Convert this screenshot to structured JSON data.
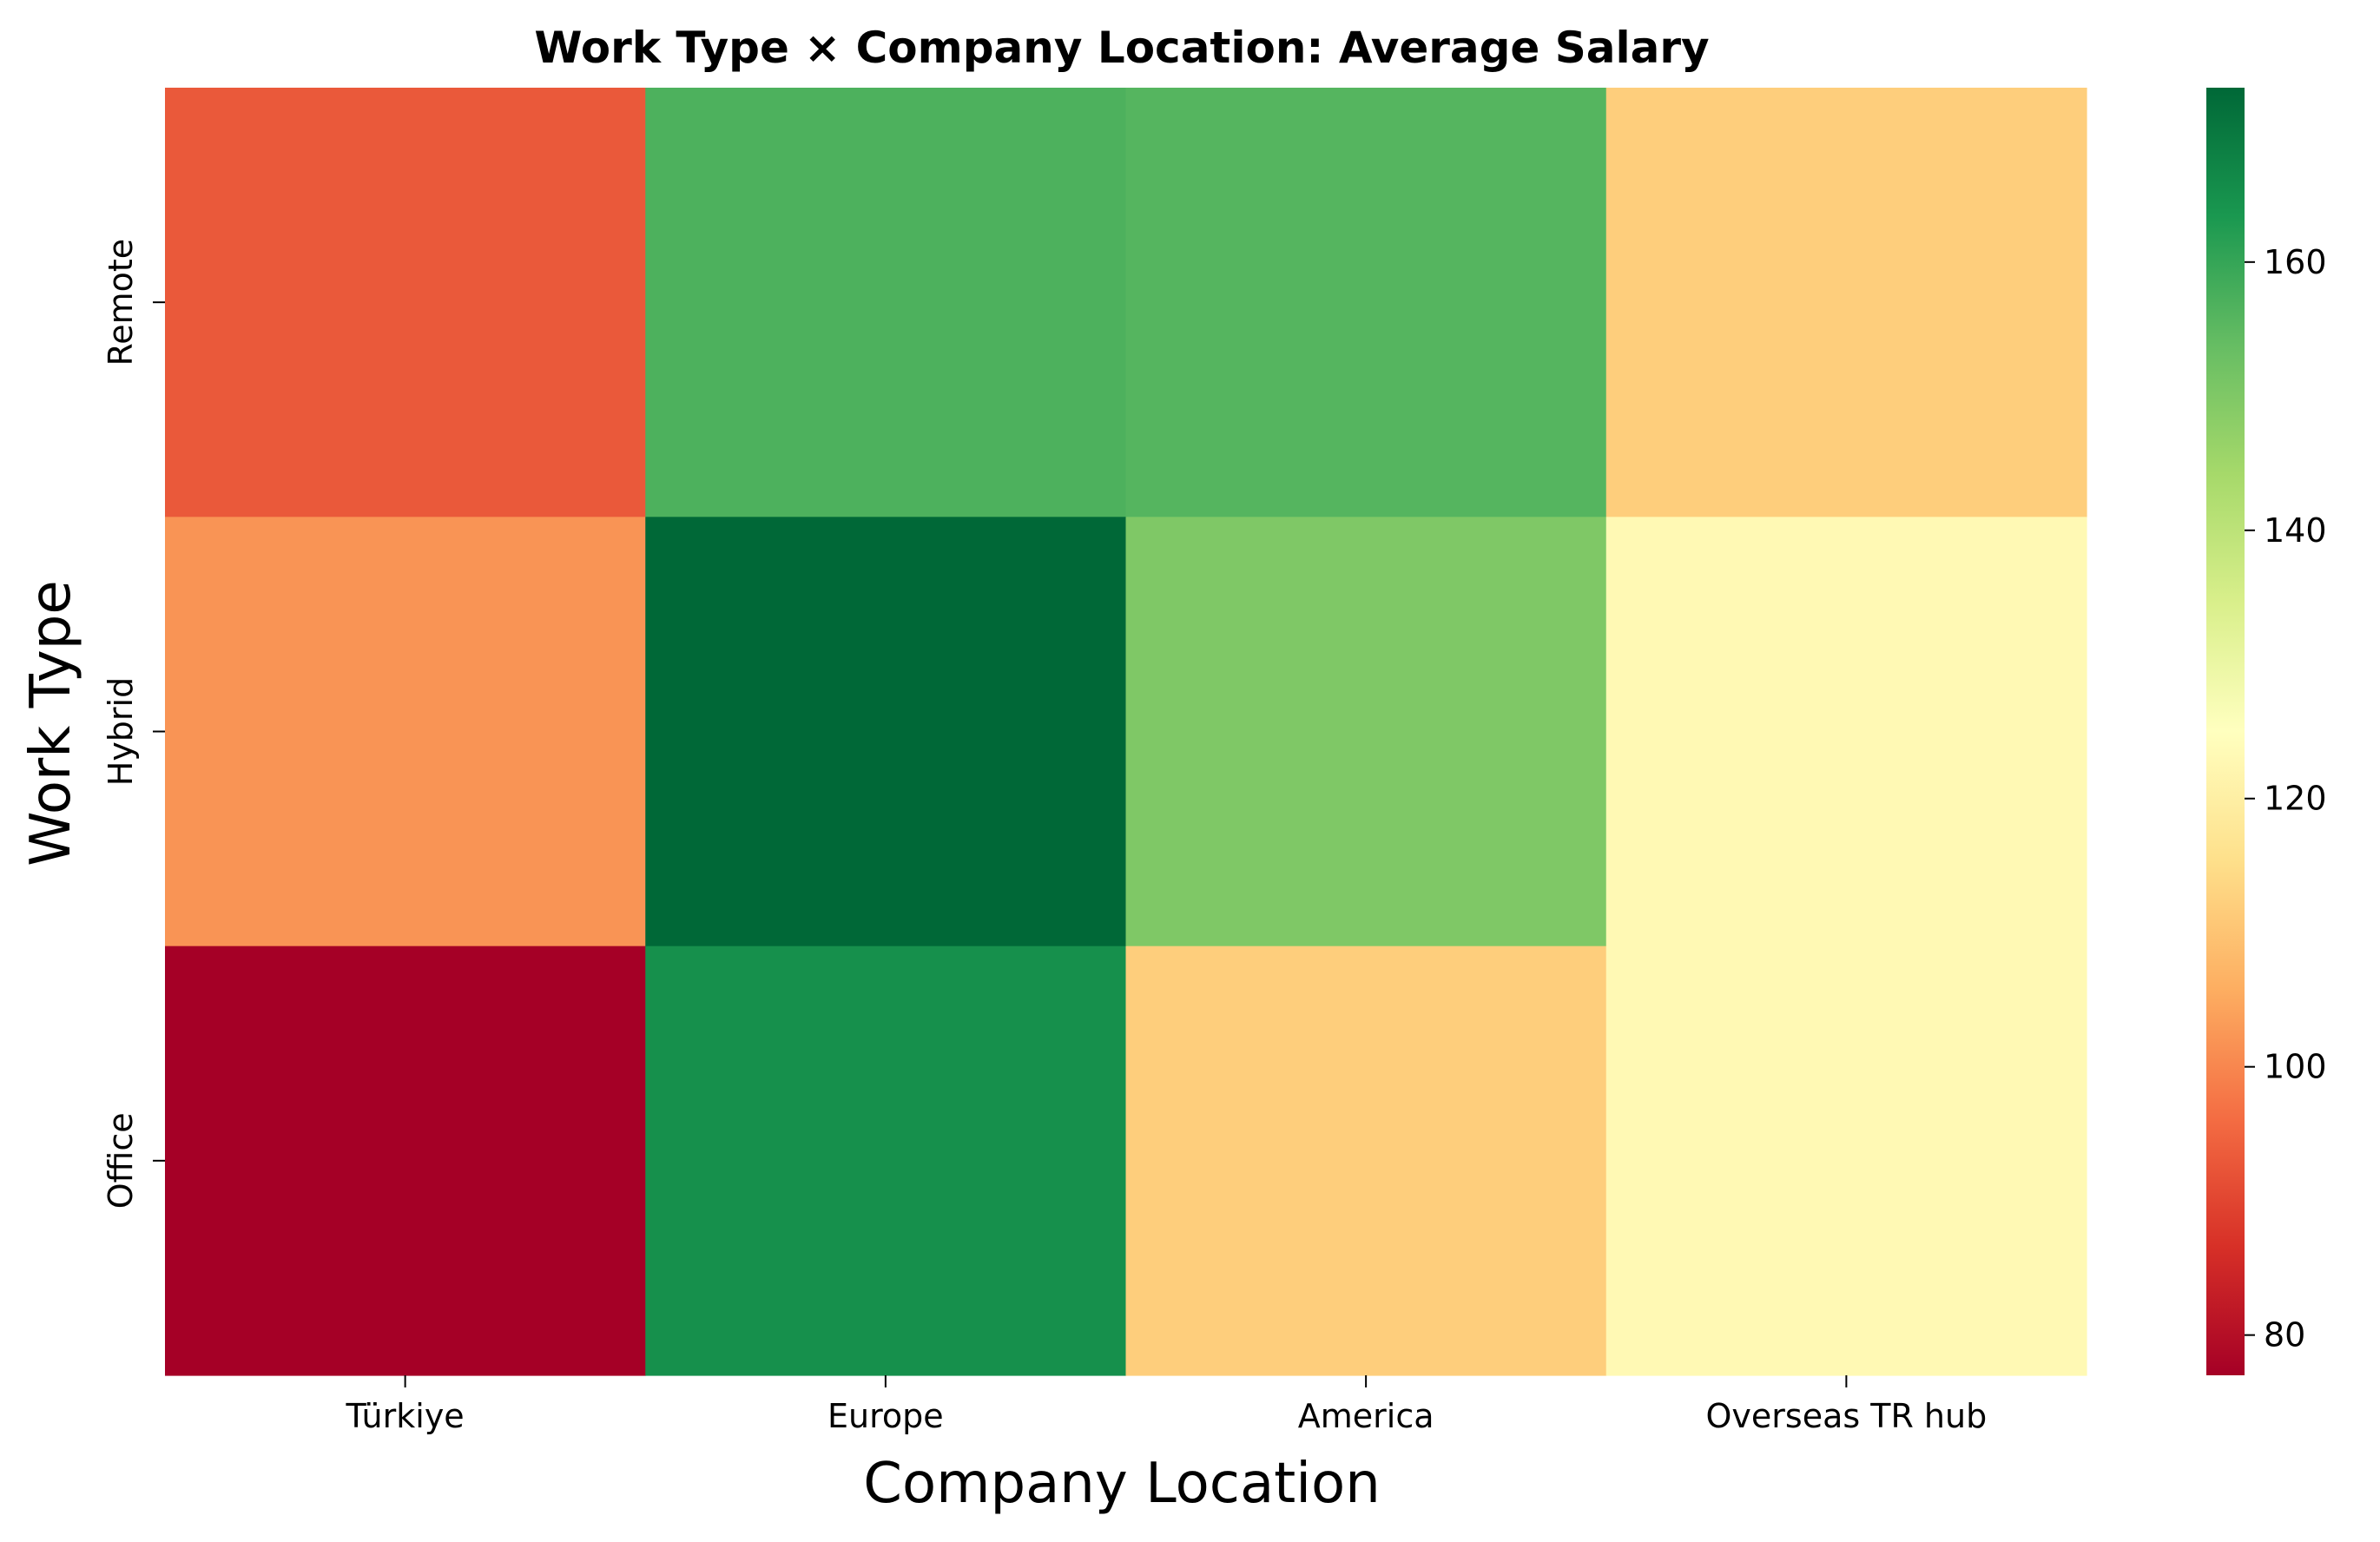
{
  "chart_data": {
    "type": "heatmap",
    "title": "Work Type × Company Location: Average Salary",
    "xlabel": "Company Location",
    "ylabel": "Work Type",
    "x_categories": [
      "Türkiye",
      "Europe",
      "America",
      "Overseas TR hub"
    ],
    "y_categories": [
      "Remote",
      "Hybrid",
      "Office"
    ],
    "values": [
      [
        93,
        157,
        156,
        112
      ],
      [
        102,
        173,
        150,
        123
      ],
      [
        77,
        165,
        112,
        123
      ]
    ],
    "colorbar": {
      "min": 77,
      "max": 173,
      "ticks": [
        80,
        100,
        120,
        140,
        160
      ],
      "colormap": "RdYlGn"
    },
    "grid": false,
    "legend": "colorbar-right"
  }
}
